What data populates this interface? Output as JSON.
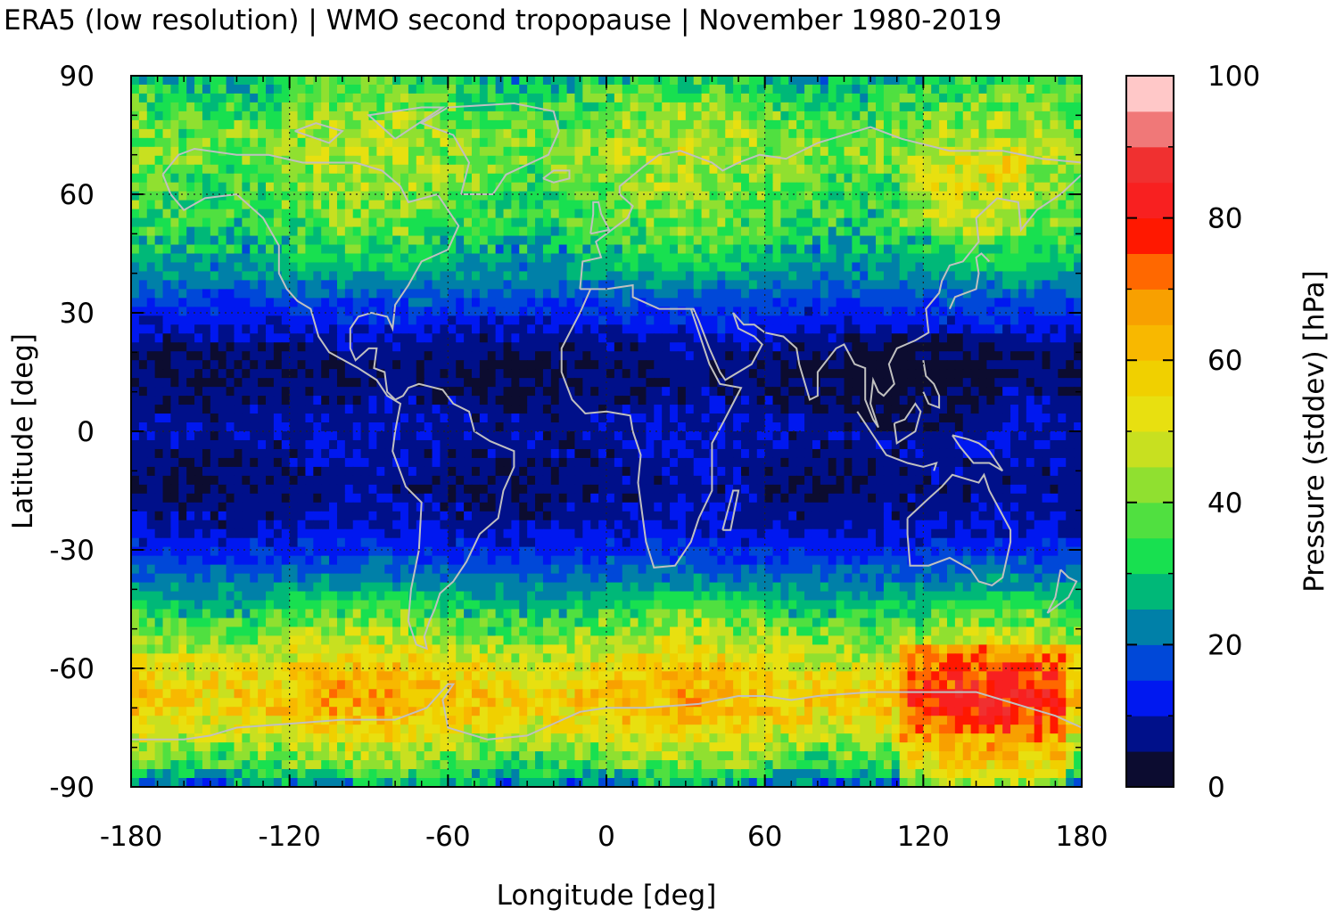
{
  "chart_data": {
    "type": "heatmap",
    "title": "ERA5 (low resolution) | WMO second tropopause | November 1980-2019",
    "xlabel": "Longitude [deg]",
    "ylabel": "Latitude [deg]",
    "xlim": [
      -180,
      180
    ],
    "ylim": [
      -90,
      90
    ],
    "x_ticks": [
      "-180",
      "-120",
      "-60",
      "0",
      "60",
      "120",
      "180"
    ],
    "y_ticks": [
      "90",
      "60",
      "30",
      "0",
      "-30",
      "-60",
      "-90"
    ],
    "x_tick_values": [
      -180,
      -120,
      -60,
      0,
      60,
      120,
      180
    ],
    "y_tick_values": [
      90,
      60,
      30,
      0,
      -30,
      -60,
      -90
    ],
    "grid": true,
    "colorbar": {
      "label": "Pressure (stddev) [hPa]",
      "range": [
        0,
        100
      ],
      "ticks": [
        "0",
        "20",
        "40",
        "60",
        "80",
        "100"
      ],
      "tick_values": [
        0,
        20,
        40,
        60,
        80,
        100
      ],
      "colors": [
        "#0c0c30",
        "#00108a",
        "#0018f0",
        "#0048d8",
        "#0080a8",
        "#00b878",
        "#18e050",
        "#50e040",
        "#90e030",
        "#c8e020",
        "#e8e010",
        "#f0d000",
        "#f8b800",
        "#f8a000",
        "#ff6800",
        "#ff1800",
        "#f82020",
        "#f03030",
        "#f07878",
        "#ffc8c8"
      ]
    },
    "zonal_profile": {
      "latitude": [
        -90,
        -85,
        -80,
        -75,
        -70,
        -65,
        -60,
        -55,
        -50,
        -45,
        -40,
        -35,
        -30,
        -25,
        -20,
        -15,
        -10,
        -5,
        0,
        5,
        10,
        15,
        20,
        25,
        30,
        35,
        40,
        45,
        50,
        55,
        60,
        65,
        70,
        75,
        80,
        85,
        90
      ],
      "pressure_stddev": [
        22,
        36,
        44,
        54,
        60,
        60,
        55,
        48,
        40,
        33,
        25,
        19,
        14,
        10,
        8,
        7,
        7,
        8,
        9,
        8,
        6,
        5,
        6,
        10,
        14,
        19,
        25,
        30,
        34,
        37,
        38,
        41,
        43,
        42,
        39,
        35,
        30
      ]
    },
    "coastline_color": "#c0c0c0"
  }
}
